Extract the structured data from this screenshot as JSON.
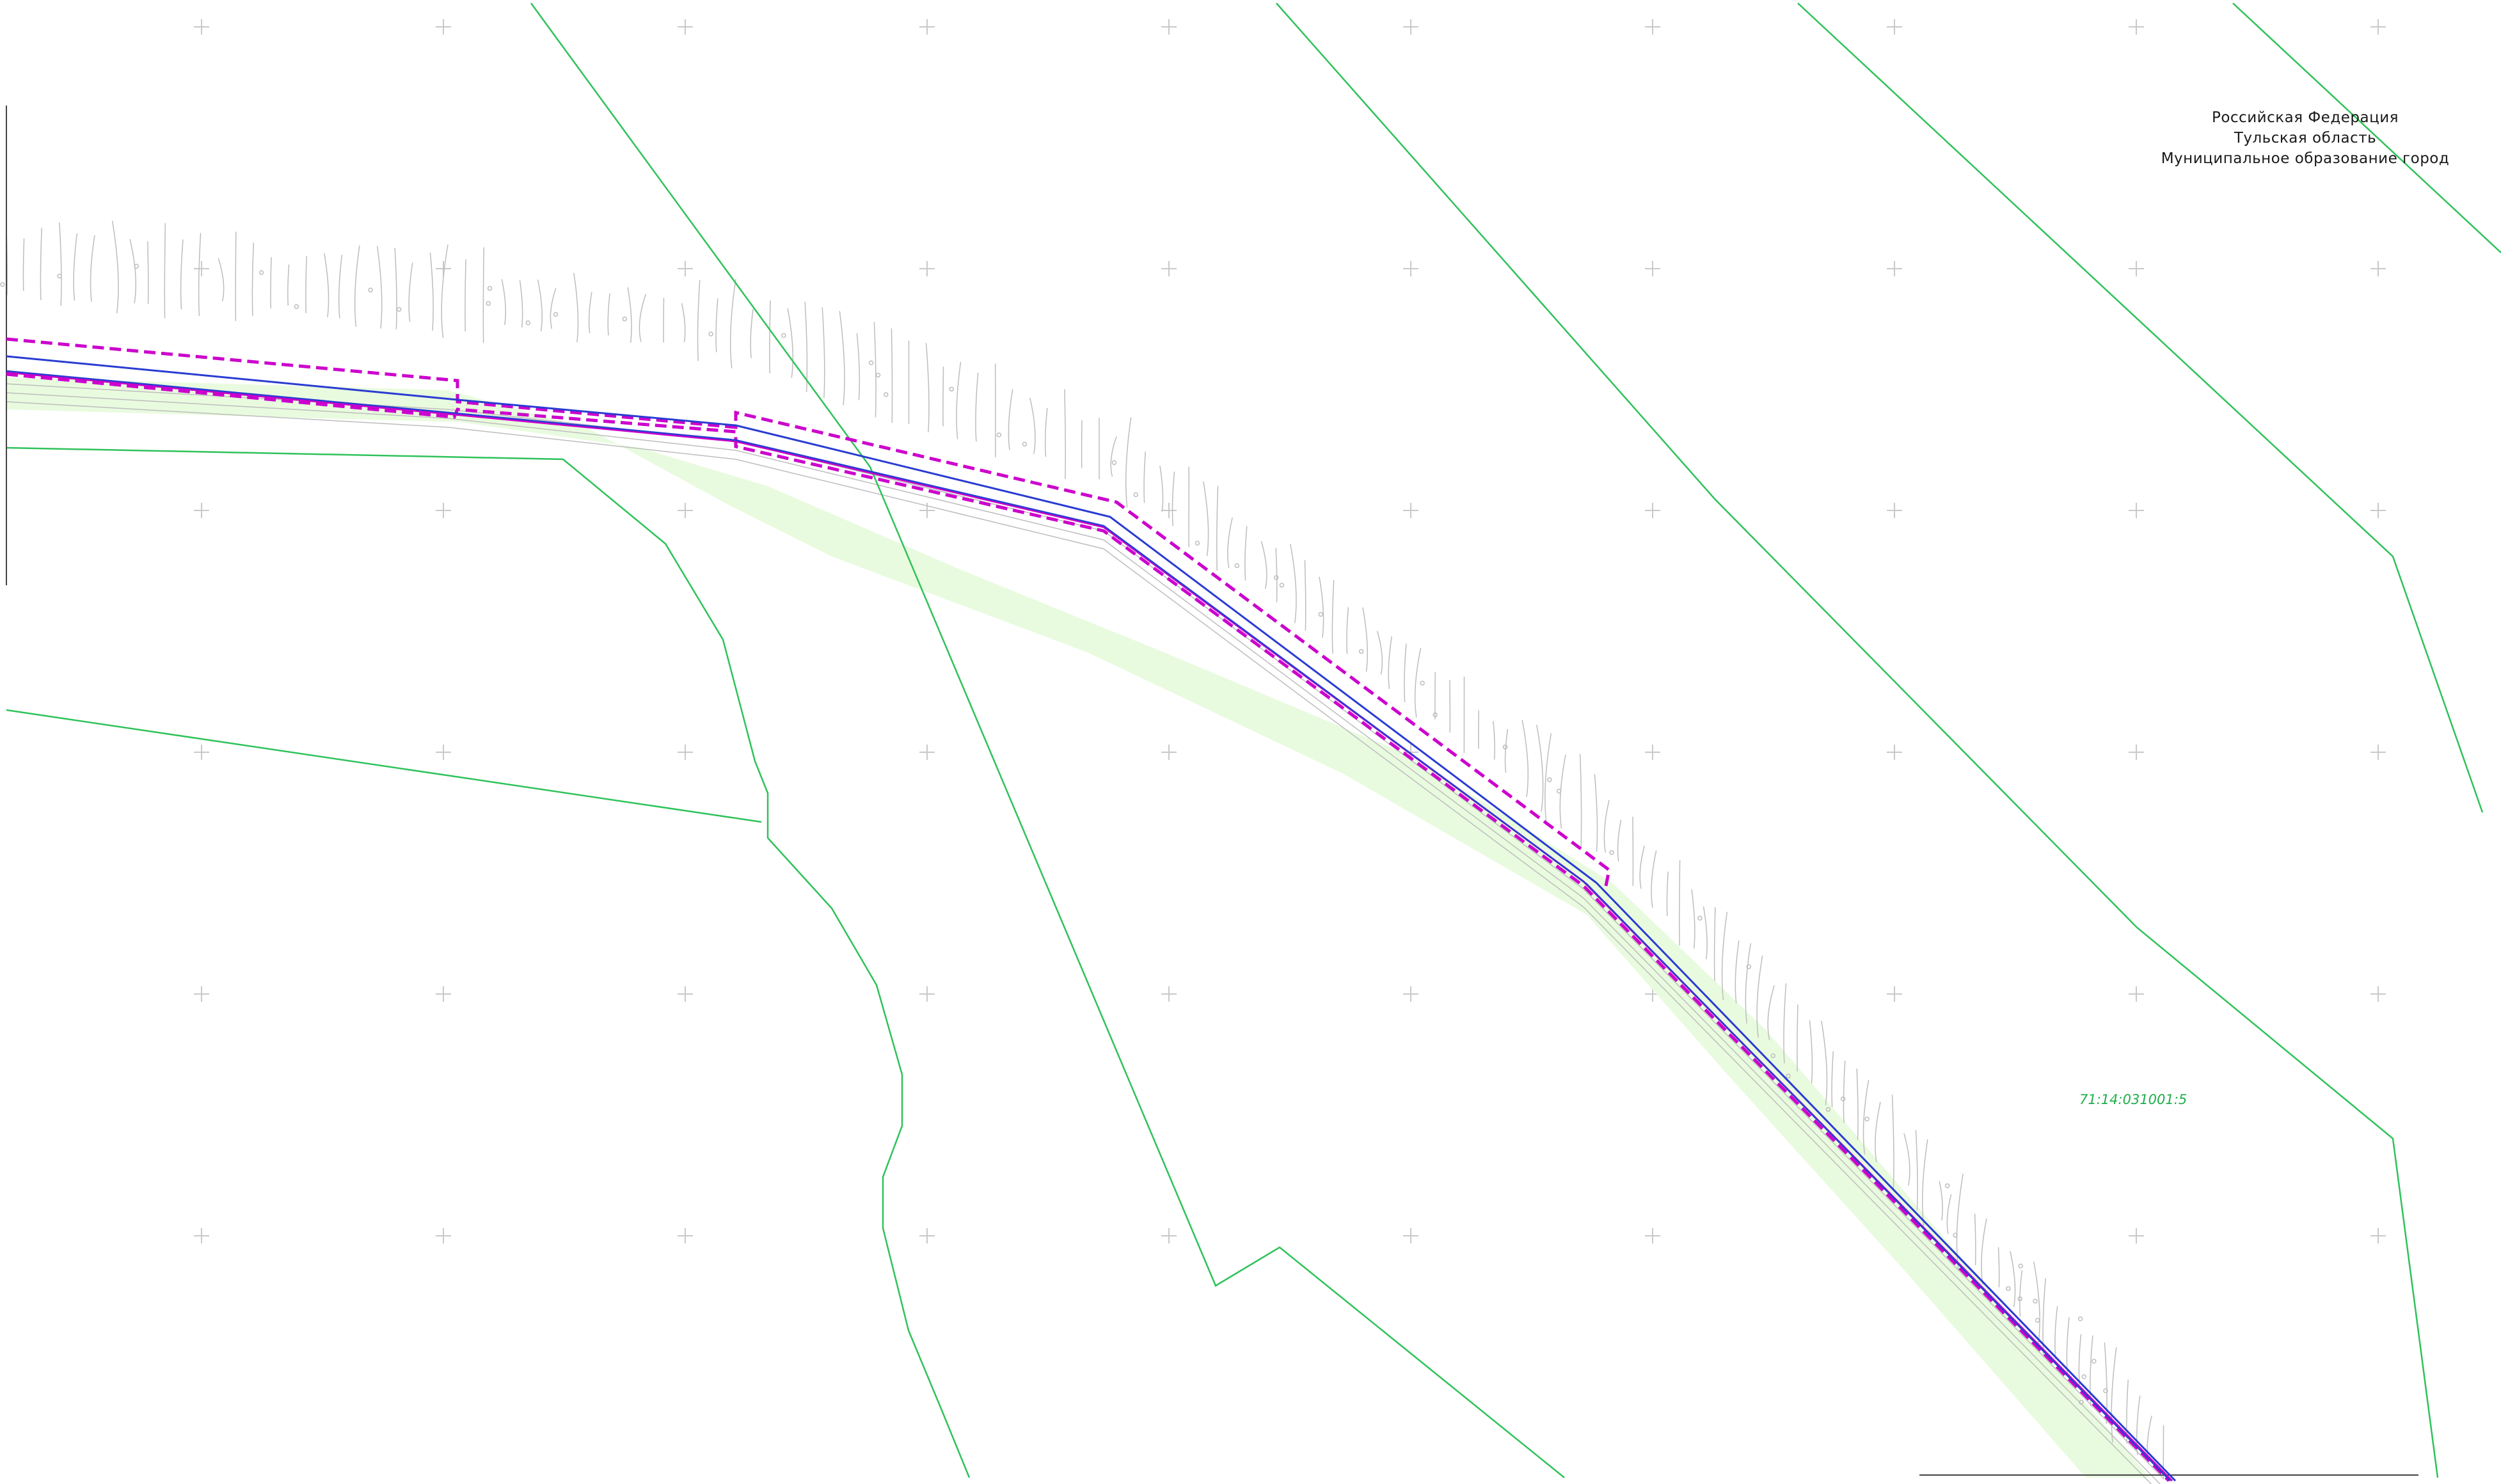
{
  "header": {
    "country": "Российская Федерация",
    "region": "Тульская область",
    "municipality": "Муниципальное образование город"
  },
  "parcel": {
    "cadastral_number": "71:14:031001:5"
  },
  "colors": {
    "parcel_boundary": "#2fc25a",
    "zone_fill": "#e9fbdf",
    "right_of_way_dashed": "#cc00cc",
    "centerline": "#2a3cd1",
    "grid_cross": "#c9c9c9",
    "topo_detail": "#bdbdbd"
  }
}
